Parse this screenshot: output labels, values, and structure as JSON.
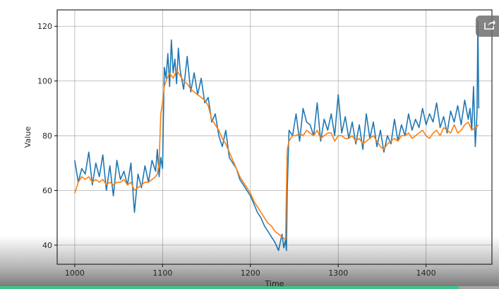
{
  "chart_data": {
    "type": "line",
    "title": "",
    "xlabel": "Time",
    "ylabel": "Value",
    "xlim": [
      980,
      1475
    ],
    "ylim": [
      33,
      126
    ],
    "xticks": [
      1000,
      1100,
      1200,
      1300,
      1400
    ],
    "yticks": [
      40,
      60,
      80,
      100,
      120
    ],
    "grid": true,
    "series": [
      {
        "color": "#1f77b4",
        "x": [
          1000,
          1004,
          1008,
          1012,
          1016,
          1020,
          1024,
          1028,
          1032,
          1036,
          1040,
          1044,
          1048,
          1052,
          1056,
          1060,
          1064,
          1068,
          1072,
          1076,
          1080,
          1084,
          1088,
          1092,
          1094,
          1096,
          1098,
          1100,
          1102,
          1104,
          1106,
          1108,
          1110,
          1112,
          1114,
          1116,
          1118,
          1120,
          1124,
          1128,
          1132,
          1136,
          1140,
          1144,
          1148,
          1152,
          1156,
          1160,
          1164,
          1168,
          1172,
          1176,
          1180,
          1184,
          1188,
          1192,
          1196,
          1200,
          1204,
          1208,
          1212,
          1216,
          1220,
          1224,
          1228,
          1232,
          1236,
          1238,
          1240,
          1241,
          1242,
          1244,
          1248,
          1252,
          1256,
          1260,
          1264,
          1268,
          1272,
          1276,
          1280,
          1284,
          1288,
          1292,
          1296,
          1300,
          1304,
          1308,
          1312,
          1316,
          1320,
          1324,
          1328,
          1332,
          1336,
          1340,
          1344,
          1348,
          1352,
          1356,
          1360,
          1364,
          1368,
          1372,
          1376,
          1380,
          1384,
          1388,
          1392,
          1396,
          1400,
          1404,
          1408,
          1412,
          1416,
          1420,
          1424,
          1428,
          1432,
          1436,
          1440,
          1444,
          1448,
          1450,
          1452,
          1454,
          1456,
          1458,
          1459,
          1460
        ],
        "y": [
          71,
          63,
          68,
          66,
          74,
          62,
          70,
          65,
          73,
          60,
          69,
          58,
          71,
          64,
          67,
          62,
          70,
          52,
          66,
          61,
          69,
          63,
          71,
          67,
          75,
          65,
          72,
          68,
          105,
          101,
          110,
          98,
          115,
          103,
          108,
          99,
          112,
          104,
          97,
          109,
          96,
          103,
          95,
          101,
          92,
          94,
          85,
          88,
          80,
          76,
          82,
          72,
          70,
          68,
          64,
          62,
          60,
          58,
          55,
          52,
          50,
          47,
          45,
          43,
          41,
          38,
          44,
          39,
          42,
          38,
          60,
          82,
          80,
          88,
          78,
          90,
          85,
          84,
          80,
          92,
          78,
          86,
          82,
          88,
          80,
          95,
          81,
          87,
          79,
          85,
          77,
          84,
          75,
          88,
          79,
          85,
          76,
          82,
          74,
          80,
          77,
          86,
          78,
          84,
          80,
          88,
          82,
          86,
          83,
          90,
          84,
          88,
          85,
          92,
          83,
          87,
          81,
          89,
          85,
          91,
          84,
          93,
          86,
          90,
          82,
          98,
          76,
          88,
          122,
          90
        ],
        "name": ""
      },
      {
        "color": "#ff7f0e",
        "x": [
          1000,
          1004,
          1008,
          1012,
          1016,
          1020,
          1024,
          1028,
          1032,
          1036,
          1040,
          1044,
          1048,
          1052,
          1056,
          1060,
          1064,
          1068,
          1072,
          1076,
          1080,
          1084,
          1088,
          1092,
          1094,
          1096,
          1098,
          1100,
          1102,
          1104,
          1108,
          1112,
          1116,
          1120,
          1124,
          1128,
          1132,
          1136,
          1140,
          1144,
          1148,
          1152,
          1156,
          1160,
          1164,
          1168,
          1172,
          1176,
          1180,
          1184,
          1188,
          1192,
          1196,
          1200,
          1204,
          1208,
          1212,
          1216,
          1220,
          1224,
          1228,
          1232,
          1236,
          1240,
          1241,
          1242,
          1244,
          1248,
          1252,
          1256,
          1260,
          1264,
          1268,
          1272,
          1276,
          1280,
          1284,
          1288,
          1292,
          1296,
          1300,
          1304,
          1308,
          1312,
          1316,
          1320,
          1324,
          1328,
          1332,
          1336,
          1340,
          1344,
          1348,
          1352,
          1356,
          1360,
          1364,
          1368,
          1372,
          1376,
          1380,
          1384,
          1388,
          1392,
          1396,
          1400,
          1404,
          1408,
          1412,
          1416,
          1420,
          1424,
          1428,
          1432,
          1436,
          1440,
          1444,
          1448,
          1452,
          1456,
          1460
        ],
        "y": [
          59,
          63,
          65,
          64,
          65,
          63,
          64,
          63,
          64,
          62,
          63,
          62,
          63,
          63,
          64,
          62,
          63,
          60,
          61,
          62,
          63,
          63,
          64,
          65,
          66,
          70,
          88,
          92,
          98,
          100,
          103,
          101,
          104,
          102,
          100,
          99,
          97,
          96,
          95,
          94,
          93,
          91,
          86,
          84,
          82,
          79,
          77,
          74,
          71,
          68,
          65,
          63,
          61,
          59,
          56,
          54,
          52,
          50,
          48,
          47,
          45,
          44,
          43,
          42,
          60,
          75,
          78,
          80,
          80,
          81,
          80,
          82,
          81,
          80,
          82,
          79,
          80,
          81,
          81,
          78,
          80,
          80,
          79,
          79,
          80,
          78,
          79,
          77,
          78,
          79,
          80,
          78,
          76,
          75,
          77,
          78,
          79,
          78,
          80,
          80,
          81,
          79,
          80,
          81,
          82,
          80,
          79,
          81,
          82,
          80,
          83,
          82,
          81,
          84,
          81,
          82,
          84,
          85,
          82,
          83,
          84
        ],
        "name": ""
      }
    ]
  },
  "ui": {
    "progress_fraction": 0.92
  }
}
